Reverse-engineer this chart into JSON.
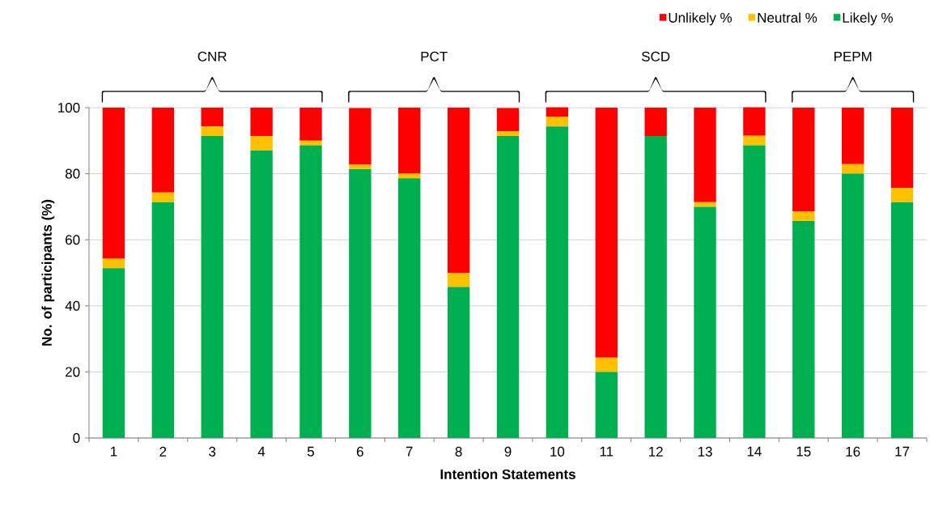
{
  "chart_data": {
    "type": "bar",
    "stacked": true,
    "xlabel": "Intention Statements",
    "ylabel": "No. of participants (%)",
    "categories": [
      "1",
      "2",
      "3",
      "4",
      "5",
      "6",
      "7",
      "8",
      "9",
      "10",
      "11",
      "12",
      "13",
      "14",
      "15",
      "16",
      "17"
    ],
    "series": [
      {
        "name": "Likely %",
        "color": "#00b050",
        "values": [
          51.4,
          71.4,
          91.4,
          87.1,
          88.6,
          81.4,
          78.6,
          45.7,
          91.4,
          94.3,
          20.0,
          91.4,
          70.0,
          88.6,
          65.7,
          80.0,
          71.4
        ]
      },
      {
        "name": "Neutral %",
        "color": "#ffc000",
        "values": [
          2.9,
          2.9,
          2.9,
          4.3,
          1.4,
          1.4,
          1.4,
          4.3,
          1.4,
          2.9,
          4.3,
          0,
          1.4,
          2.9,
          2.9,
          2.9,
          4.3
        ]
      },
      {
        "name": "Unlikely %",
        "color": "#ff0000",
        "values": [
          45.7,
          25.7,
          5.7,
          8.6,
          10.0,
          17.1,
          20.0,
          50.0,
          7.1,
          2.9,
          75.7,
          8.6,
          28.6,
          8.6,
          31.4,
          17.1,
          24.3
        ]
      }
    ],
    "ylim": [
      0,
      100
    ],
    "yticks": [
      0,
      20,
      40,
      60,
      80,
      100
    ],
    "grid": "y",
    "legend": "top right",
    "annotations": [
      "CNR",
      "PCT",
      "SCD",
      "PEPM"
    ]
  }
}
